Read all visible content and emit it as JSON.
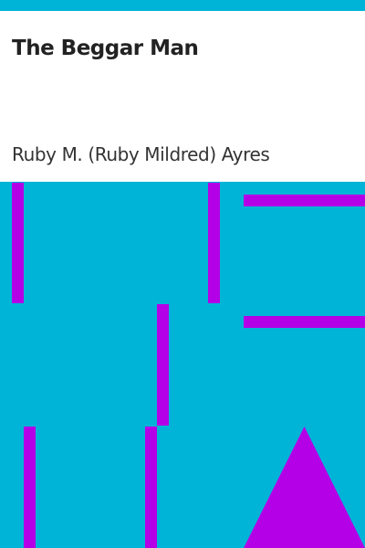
{
  "cover": {
    "title": "The Beggar Man",
    "author": "Ruby M. (Ruby Mildred) Ayres"
  },
  "colors": {
    "background": "#00b4d8",
    "accent": "#b400e6",
    "panel": "#ffffff",
    "title_text": "#222222",
    "author_text": "#333333"
  }
}
